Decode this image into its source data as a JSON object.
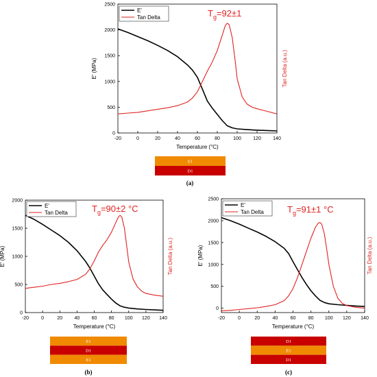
{
  "chart_data": [
    {
      "panel": "(a)",
      "type": "line",
      "xlabel": "Temperature (°C)",
      "ylabel": "E' (MPa)",
      "ylabel_right": "Tan Delta (a.u.)",
      "xlim": [
        -20,
        140
      ],
      "ylim": [
        0,
        2500
      ],
      "xticks": [
        -20,
        0,
        20,
        40,
        60,
        80,
        100,
        120,
        140
      ],
      "yticks": [
        0,
        500,
        1000,
        1500,
        2000,
        2500
      ],
      "legend": "top-left",
      "annotation": {
        "main": "T",
        "sub": "g",
        "rest": "=92±1"
      },
      "layers": [
        {
          "label": "E1",
          "color": "#f08a00"
        },
        {
          "label": "D1",
          "color": "#c80000"
        }
      ],
      "series": [
        {
          "name": "E'",
          "color": "#000000",
          "x": [
            -20,
            -10,
            0,
            10,
            20,
            30,
            40,
            50,
            55,
            60,
            65,
            70,
            75,
            80,
            85,
            90,
            95,
            100,
            110,
            120,
            130,
            140
          ],
          "y": [
            2020,
            1950,
            1870,
            1790,
            1700,
            1600,
            1480,
            1320,
            1220,
            1080,
            850,
            620,
            480,
            360,
            240,
            140,
            100,
            80,
            65,
            55,
            48,
            40
          ]
        },
        {
          "name": "Tan Delta",
          "color": "#e02020",
          "x": [
            -20,
            -10,
            0,
            10,
            20,
            30,
            40,
            50,
            55,
            60,
            65,
            70,
            75,
            80,
            85,
            88,
            90,
            92,
            95,
            98,
            100,
            105,
            110,
            115,
            120,
            130,
            140
          ],
          "y": [
            370,
            385,
            400,
            430,
            460,
            490,
            530,
            600,
            680,
            800,
            1000,
            1200,
            1380,
            1600,
            1900,
            2080,
            2130,
            2100,
            1850,
            1400,
            1050,
            700,
            560,
            500,
            470,
            420,
            370
          ]
        }
      ]
    },
    {
      "panel": "(b)",
      "type": "line",
      "xlabel": "Temperature (°C)",
      "ylabel": "E' (MPa)",
      "ylabel_right": "Tan Delta (a.u.)",
      "xlim": [
        -20,
        140
      ],
      "ylim": [
        0,
        2000
      ],
      "xticks": [
        -20,
        0,
        20,
        40,
        60,
        80,
        100,
        120,
        140
      ],
      "yticks": [
        0,
        500,
        1000,
        1500,
        2000
      ],
      "legend": "top-left",
      "annotation": {
        "main": "T",
        "sub": "g",
        "rest": "=90±2 °C"
      },
      "layers": [
        {
          "label": "E1",
          "color": "#f08a00"
        },
        {
          "label": "D1",
          "color": "#c80000"
        },
        {
          "label": "E1",
          "color": "#f08a00"
        }
      ],
      "series": [
        {
          "name": "E'",
          "color": "#000000",
          "x": [
            -20,
            -10,
            0,
            10,
            20,
            30,
            40,
            50,
            55,
            60,
            65,
            70,
            75,
            80,
            85,
            90,
            95,
            100,
            110,
            120,
            130,
            140
          ],
          "y": [
            1730,
            1660,
            1570,
            1470,
            1370,
            1250,
            1100,
            910,
            790,
            650,
            510,
            400,
            320,
            240,
            170,
            120,
            95,
            80,
            65,
            55,
            48,
            40
          ]
        },
        {
          "name": "Tan Delta",
          "color": "#e02020",
          "x": [
            -20,
            -10,
            0,
            10,
            20,
            30,
            40,
            50,
            55,
            60,
            65,
            70,
            75,
            80,
            85,
            88,
            90,
            92,
            95,
            98,
            100,
            105,
            110,
            115,
            120,
            130,
            140
          ],
          "y": [
            430,
            450,
            470,
            500,
            520,
            550,
            590,
            680,
            780,
            920,
            1080,
            1200,
            1300,
            1430,
            1600,
            1700,
            1730,
            1700,
            1500,
            1150,
            900,
            600,
            460,
            380,
            340,
            310,
            290
          ]
        }
      ]
    },
    {
      "panel": "(c)",
      "type": "line",
      "xlabel": "Temperature (°C)",
      "ylabel": "E' (MPa)",
      "ylabel_right": "Tan Delta (a.u.)",
      "xlim": [
        -20,
        140
      ],
      "ylim": [
        -100,
        2500
      ],
      "xticks": [
        -20,
        0,
        20,
        40,
        60,
        80,
        100,
        120,
        140
      ],
      "yticks": [
        0,
        500,
        1000,
        1500,
        2000,
        2500
      ],
      "legend": "top-left",
      "annotation": {
        "main": "T",
        "sub": "g",
        "rest": "=91±1 °C"
      },
      "layers": [
        {
          "label": "D1",
          "color": "#c80000"
        },
        {
          "label": "E1",
          "color": "#f08a00"
        },
        {
          "label": "D1",
          "color": "#c80000"
        }
      ],
      "series": [
        {
          "name": "E'",
          "color": "#000000",
          "x": [
            -20,
            -10,
            0,
            10,
            20,
            30,
            40,
            50,
            55,
            60,
            65,
            70,
            75,
            80,
            85,
            90,
            95,
            100,
            110,
            120,
            130,
            140
          ],
          "y": [
            2070,
            2000,
            1920,
            1830,
            1740,
            1640,
            1520,
            1370,
            1250,
            1060,
            880,
            700,
            540,
            400,
            280,
            180,
            130,
            100,
            80,
            65,
            50,
            40
          ]
        },
        {
          "name": "Tan Delta",
          "color": "#e02020",
          "x": [
            -20,
            -10,
            0,
            10,
            20,
            30,
            40,
            50,
            55,
            60,
            65,
            70,
            75,
            80,
            85,
            88,
            90,
            92,
            95,
            98,
            100,
            105,
            110,
            115,
            120,
            130,
            140
          ],
          "y": [
            -60,
            -50,
            -30,
            -10,
            10,
            40,
            80,
            170,
            280,
            450,
            700,
            1000,
            1300,
            1600,
            1850,
            1940,
            1960,
            1920,
            1700,
            1300,
            1000,
            500,
            230,
            110,
            60,
            20,
            0
          ]
        }
      ]
    }
  ]
}
